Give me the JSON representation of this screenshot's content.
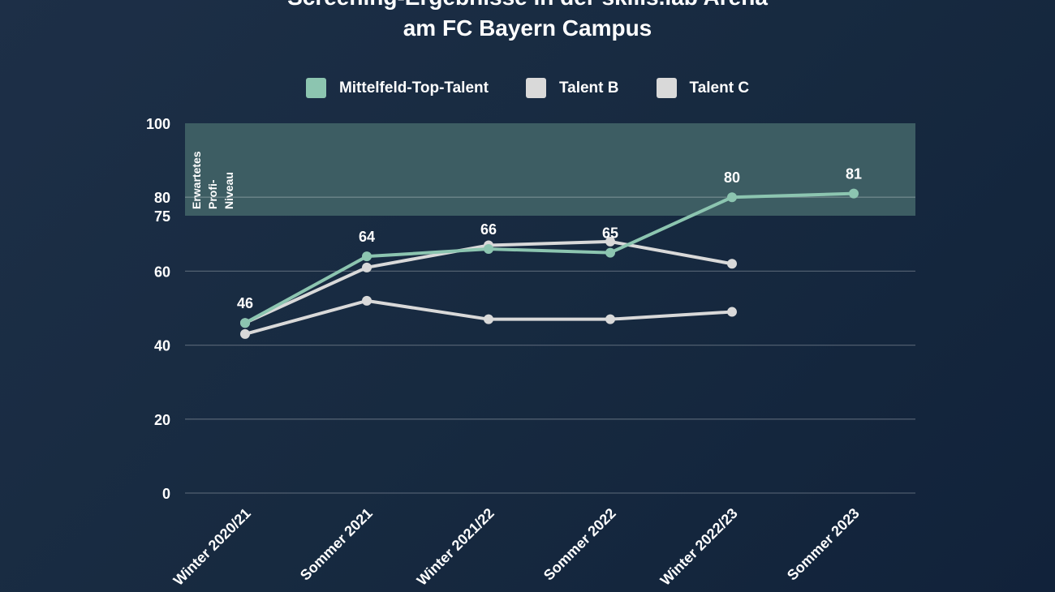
{
  "chart_data": {
    "type": "line",
    "title": "Screening-Ergebnisse in der skills.lab Arena am FC Bayern Campus",
    "title_lines": [
      "Screening-Ergebnisse in der skills.lab Arena",
      "am FC Bayern Campus"
    ],
    "categories": [
      "Winter 2020/21",
      "Sommer 2021",
      "Winter 2021/22",
      "Sommer 2022",
      "Winter 2022/23",
      "Sommer 2023"
    ],
    "ylim": [
      0,
      100
    ],
    "yticks": [
      0,
      20,
      40,
      60,
      75,
      80,
      100
    ],
    "grid": true,
    "legend_position": "top",
    "band": {
      "from": 75,
      "to": 100,
      "label_lines": [
        "Erwartetes",
        "Profi-",
        "Niveau"
      ],
      "color": "#3d5d63"
    },
    "series": [
      {
        "name": "Mittelfeld-Top-Talent",
        "color": "#8cc5b0",
        "values": [
          46,
          64,
          66,
          65,
          80,
          81
        ],
        "labels": true
      },
      {
        "name": "Talent B",
        "color": "#d9d9d9",
        "values": [
          46,
          61,
          67,
          68,
          62,
          null
        ],
        "labels": false
      },
      {
        "name": "Talent C",
        "color": "#d9d9d9",
        "values": [
          43,
          52,
          47,
          47,
          49,
          null
        ],
        "labels": false
      }
    ]
  }
}
